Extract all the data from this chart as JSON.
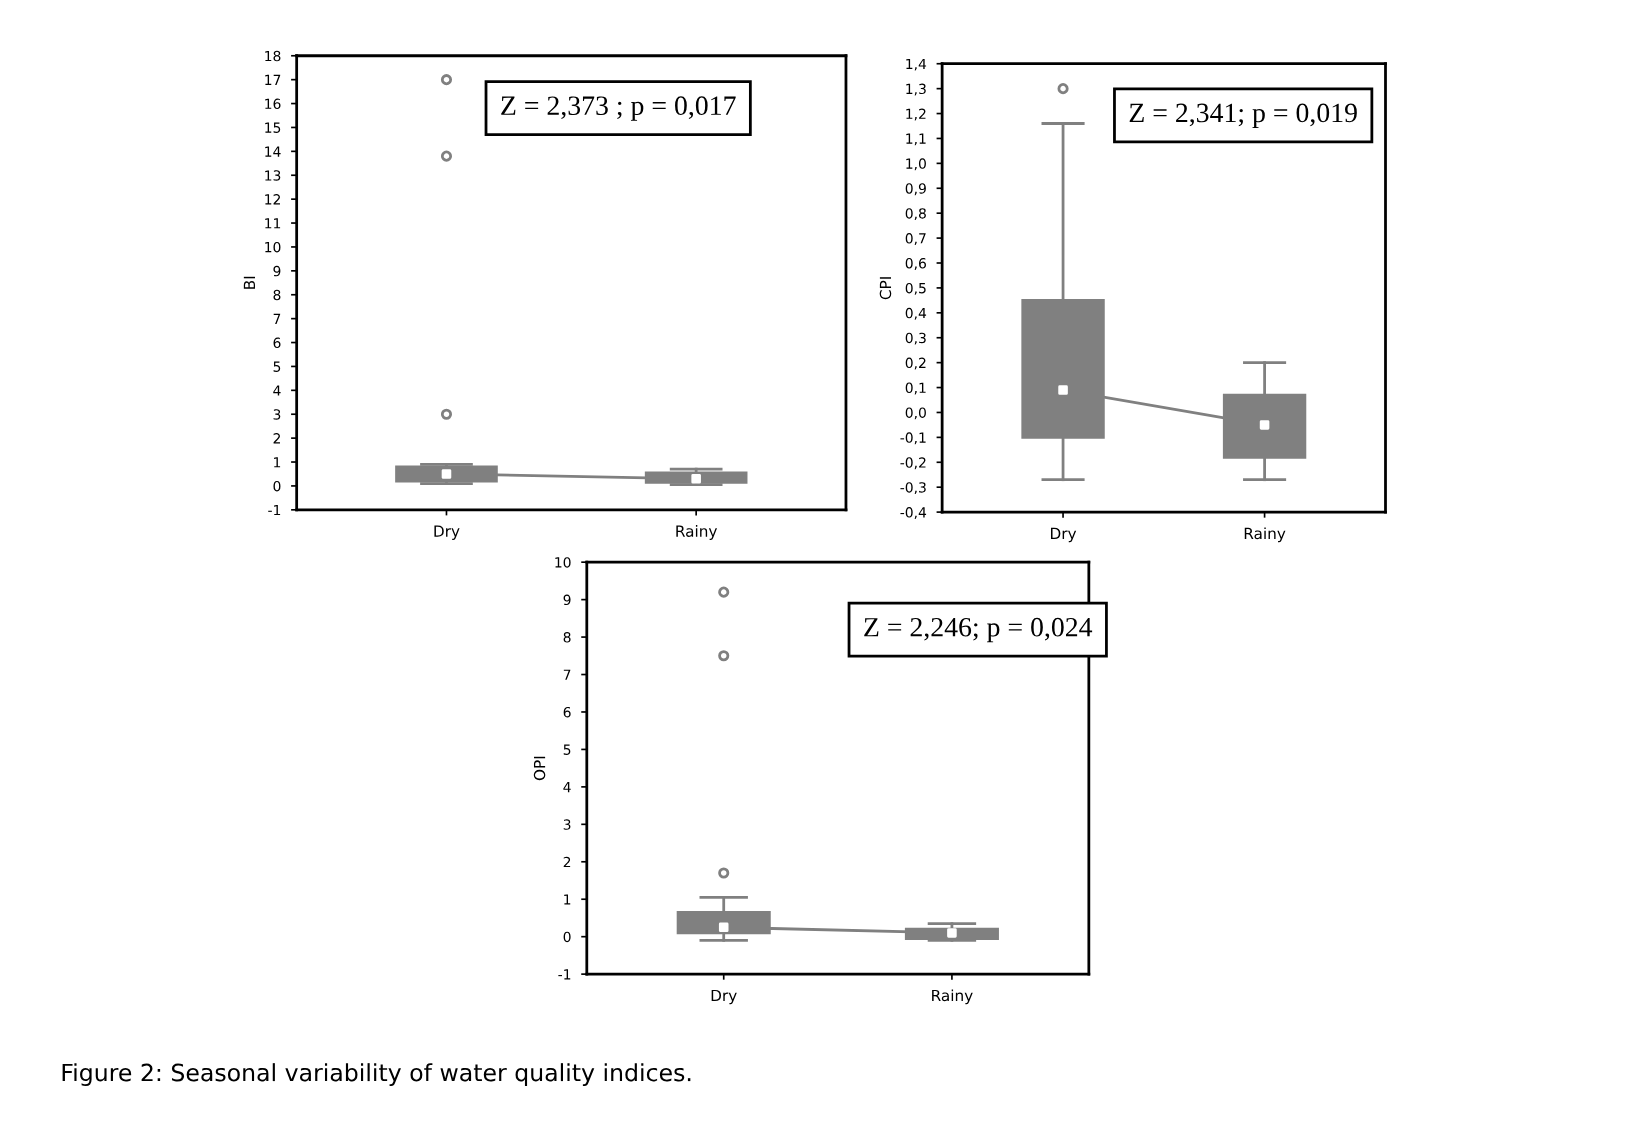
{
  "chart_data": [
    {
      "type": "box",
      "ylabel": "BI",
      "categories": [
        "Dry",
        "Rainy"
      ],
      "color": "#808080",
      "grid": false,
      "legend": false,
      "boxes": [
        {
          "low": 0.1,
          "q1": 0.2,
          "median": 0.5,
          "q3": 0.8,
          "high": 0.9,
          "outliers": [
            3.0,
            13.8,
            17.0
          ]
        },
        {
          "low": 0.05,
          "q1": 0.15,
          "median": 0.3,
          "q3": 0.55,
          "high": 0.7
        }
      ],
      "series": [
        {
          "type": "line",
          "color": "#808080",
          "values": [
            0.5,
            0.3
          ],
          "marker": "none"
        }
      ],
      "ylim": [
        -1,
        18
      ],
      "yticks": [
        -1,
        0,
        1,
        2,
        3,
        4,
        5,
        6,
        7,
        8,
        9,
        10,
        11,
        12,
        13,
        14,
        15,
        16,
        17,
        18
      ],
      "annotations": [
        "Z = 2,373 ; p = 0,017"
      ]
    },
    {
      "type": "box",
      "ylabel": "CPI",
      "categories": [
        "Dry",
        "Rainy"
      ],
      "color": "#808080",
      "grid": false,
      "legend": false,
      "boxes": [
        {
          "low": -0.27,
          "q1": -0.1,
          "median": 0.09,
          "q3": 0.45,
          "high": 1.16,
          "outliers": [
            1.3
          ]
        },
        {
          "low": -0.27,
          "q1": -0.18,
          "median": -0.05,
          "q3": 0.07,
          "high": 0.2
        }
      ],
      "series": [
        {
          "type": "line",
          "color": "#808080",
          "values": [
            0.09,
            -0.05
          ],
          "marker": "none"
        }
      ],
      "ylim": [
        -0.4,
        1.4
      ],
      "yticks": [
        {
          "value": -0.4,
          "label": "-0,4"
        },
        {
          "value": -0.3,
          "label": "-0,3"
        },
        {
          "value": -0.2,
          "label": "-0,2"
        },
        {
          "value": -0.1,
          "label": "-0,1"
        },
        {
          "value": 0.0,
          "label": "0,0"
        },
        {
          "value": 0.1,
          "label": "0,1"
        },
        {
          "value": 0.2,
          "label": "0,2"
        },
        {
          "value": 0.3,
          "label": "0,3"
        },
        {
          "value": 0.4,
          "label": "0,4"
        },
        {
          "value": 0.5,
          "label": "0,5"
        },
        {
          "value": 0.6,
          "label": "0,6"
        },
        {
          "value": 0.7,
          "label": "0,7"
        },
        {
          "value": 0.8,
          "label": "0,8"
        },
        {
          "value": 0.9,
          "label": "0,9"
        },
        {
          "value": 1.0,
          "label": "1,0"
        },
        {
          "value": 1.1,
          "label": "1,1"
        },
        {
          "value": 1.2,
          "label": "1,2"
        },
        {
          "value": 1.3,
          "label": "1,3"
        },
        {
          "value": 1.4,
          "label": "1,4"
        }
      ],
      "annotations": [
        "Z = 2,341; p = 0,019"
      ]
    },
    {
      "type": "box",
      "ylabel": "OPI",
      "categories": [
        "Dry",
        "Rainy"
      ],
      "color": "#808080",
      "grid": false,
      "legend": false,
      "boxes": [
        {
          "low": -0.1,
          "q1": 0.1,
          "median": 0.25,
          "q3": 0.65,
          "high": 1.05,
          "outliers": [
            1.7,
            7.5,
            9.2
          ]
        },
        {
          "low": -0.1,
          "q1": -0.05,
          "median": 0.1,
          "q3": 0.2,
          "high": 0.35
        }
      ],
      "series": [
        {
          "type": "line",
          "color": "#808080",
          "values": [
            0.25,
            0.1
          ],
          "marker": "none"
        }
      ],
      "ylim": [
        -1,
        10
      ],
      "yticks": [
        -1,
        0,
        1,
        2,
        3,
        4,
        5,
        6,
        7,
        8,
        9,
        10
      ],
      "annotations": [
        "Z = 2,246; p = 0,024",
        "Figure 2: Seasonal variability of water quality indices."
      ]
    }
  ]
}
